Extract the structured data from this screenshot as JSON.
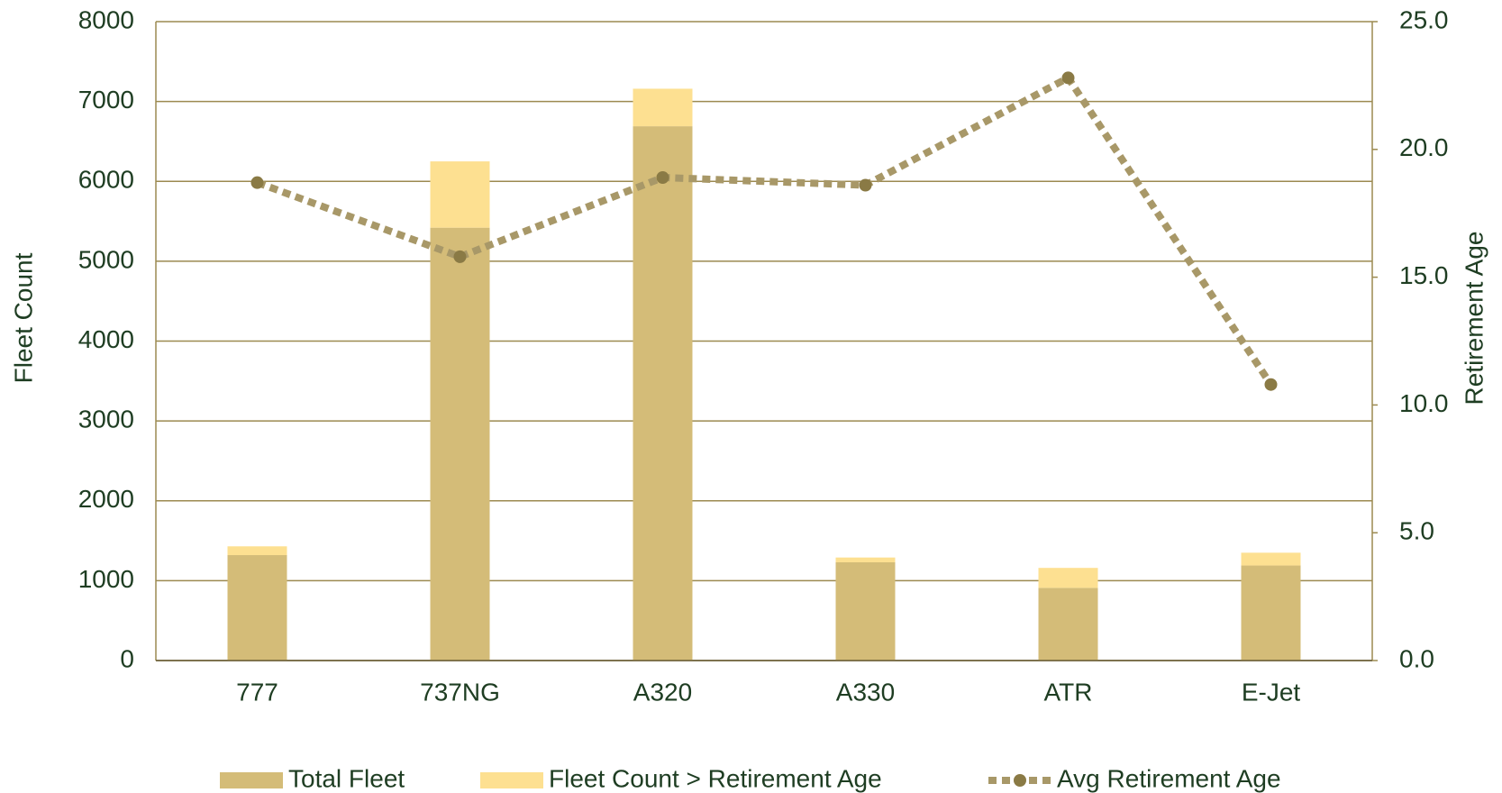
{
  "chart_data": {
    "type": "bar",
    "stacked": true,
    "categories": [
      "777",
      "737NG",
      "A320",
      "A330",
      "ATR",
      "E-Jet"
    ],
    "series": [
      {
        "name": "Total Fleet",
        "color": "#d4bc78",
        "values": [
          1320,
          5420,
          6690,
          1230,
          910,
          1190
        ]
      },
      {
        "name": "Fleet Count > Retirement Age",
        "color": "#fde091",
        "values": [
          110,
          830,
          470,
          60,
          250,
          160
        ]
      },
      {
        "name": "Avg Retirement Age",
        "type": "line",
        "axis": "y2",
        "color": "#a89868",
        "marker_color": "#8a7a45",
        "dashed": true,
        "values": [
          18.7,
          15.8,
          18.9,
          18.6,
          22.8,
          10.8
        ]
      }
    ],
    "ylabel": "Fleet Count",
    "y2label": "Retirement Age",
    "ylim": [
      0,
      8000
    ],
    "yticks": [
      0,
      1000,
      2000,
      3000,
      4000,
      5000,
      6000,
      7000,
      8000
    ],
    "y2lim": [
      0,
      25
    ],
    "y2ticks": [
      {
        "value": 0,
        "label": "0.0"
      },
      {
        "value": 5,
        "label": "5.0"
      },
      {
        "value": 10,
        "label": "10.0"
      },
      {
        "value": 15,
        "label": "15.0"
      },
      {
        "value": 20,
        "label": "20.0"
      },
      {
        "value": 25,
        "label": "25.0"
      }
    ],
    "grid": true,
    "legend": "bottom"
  }
}
